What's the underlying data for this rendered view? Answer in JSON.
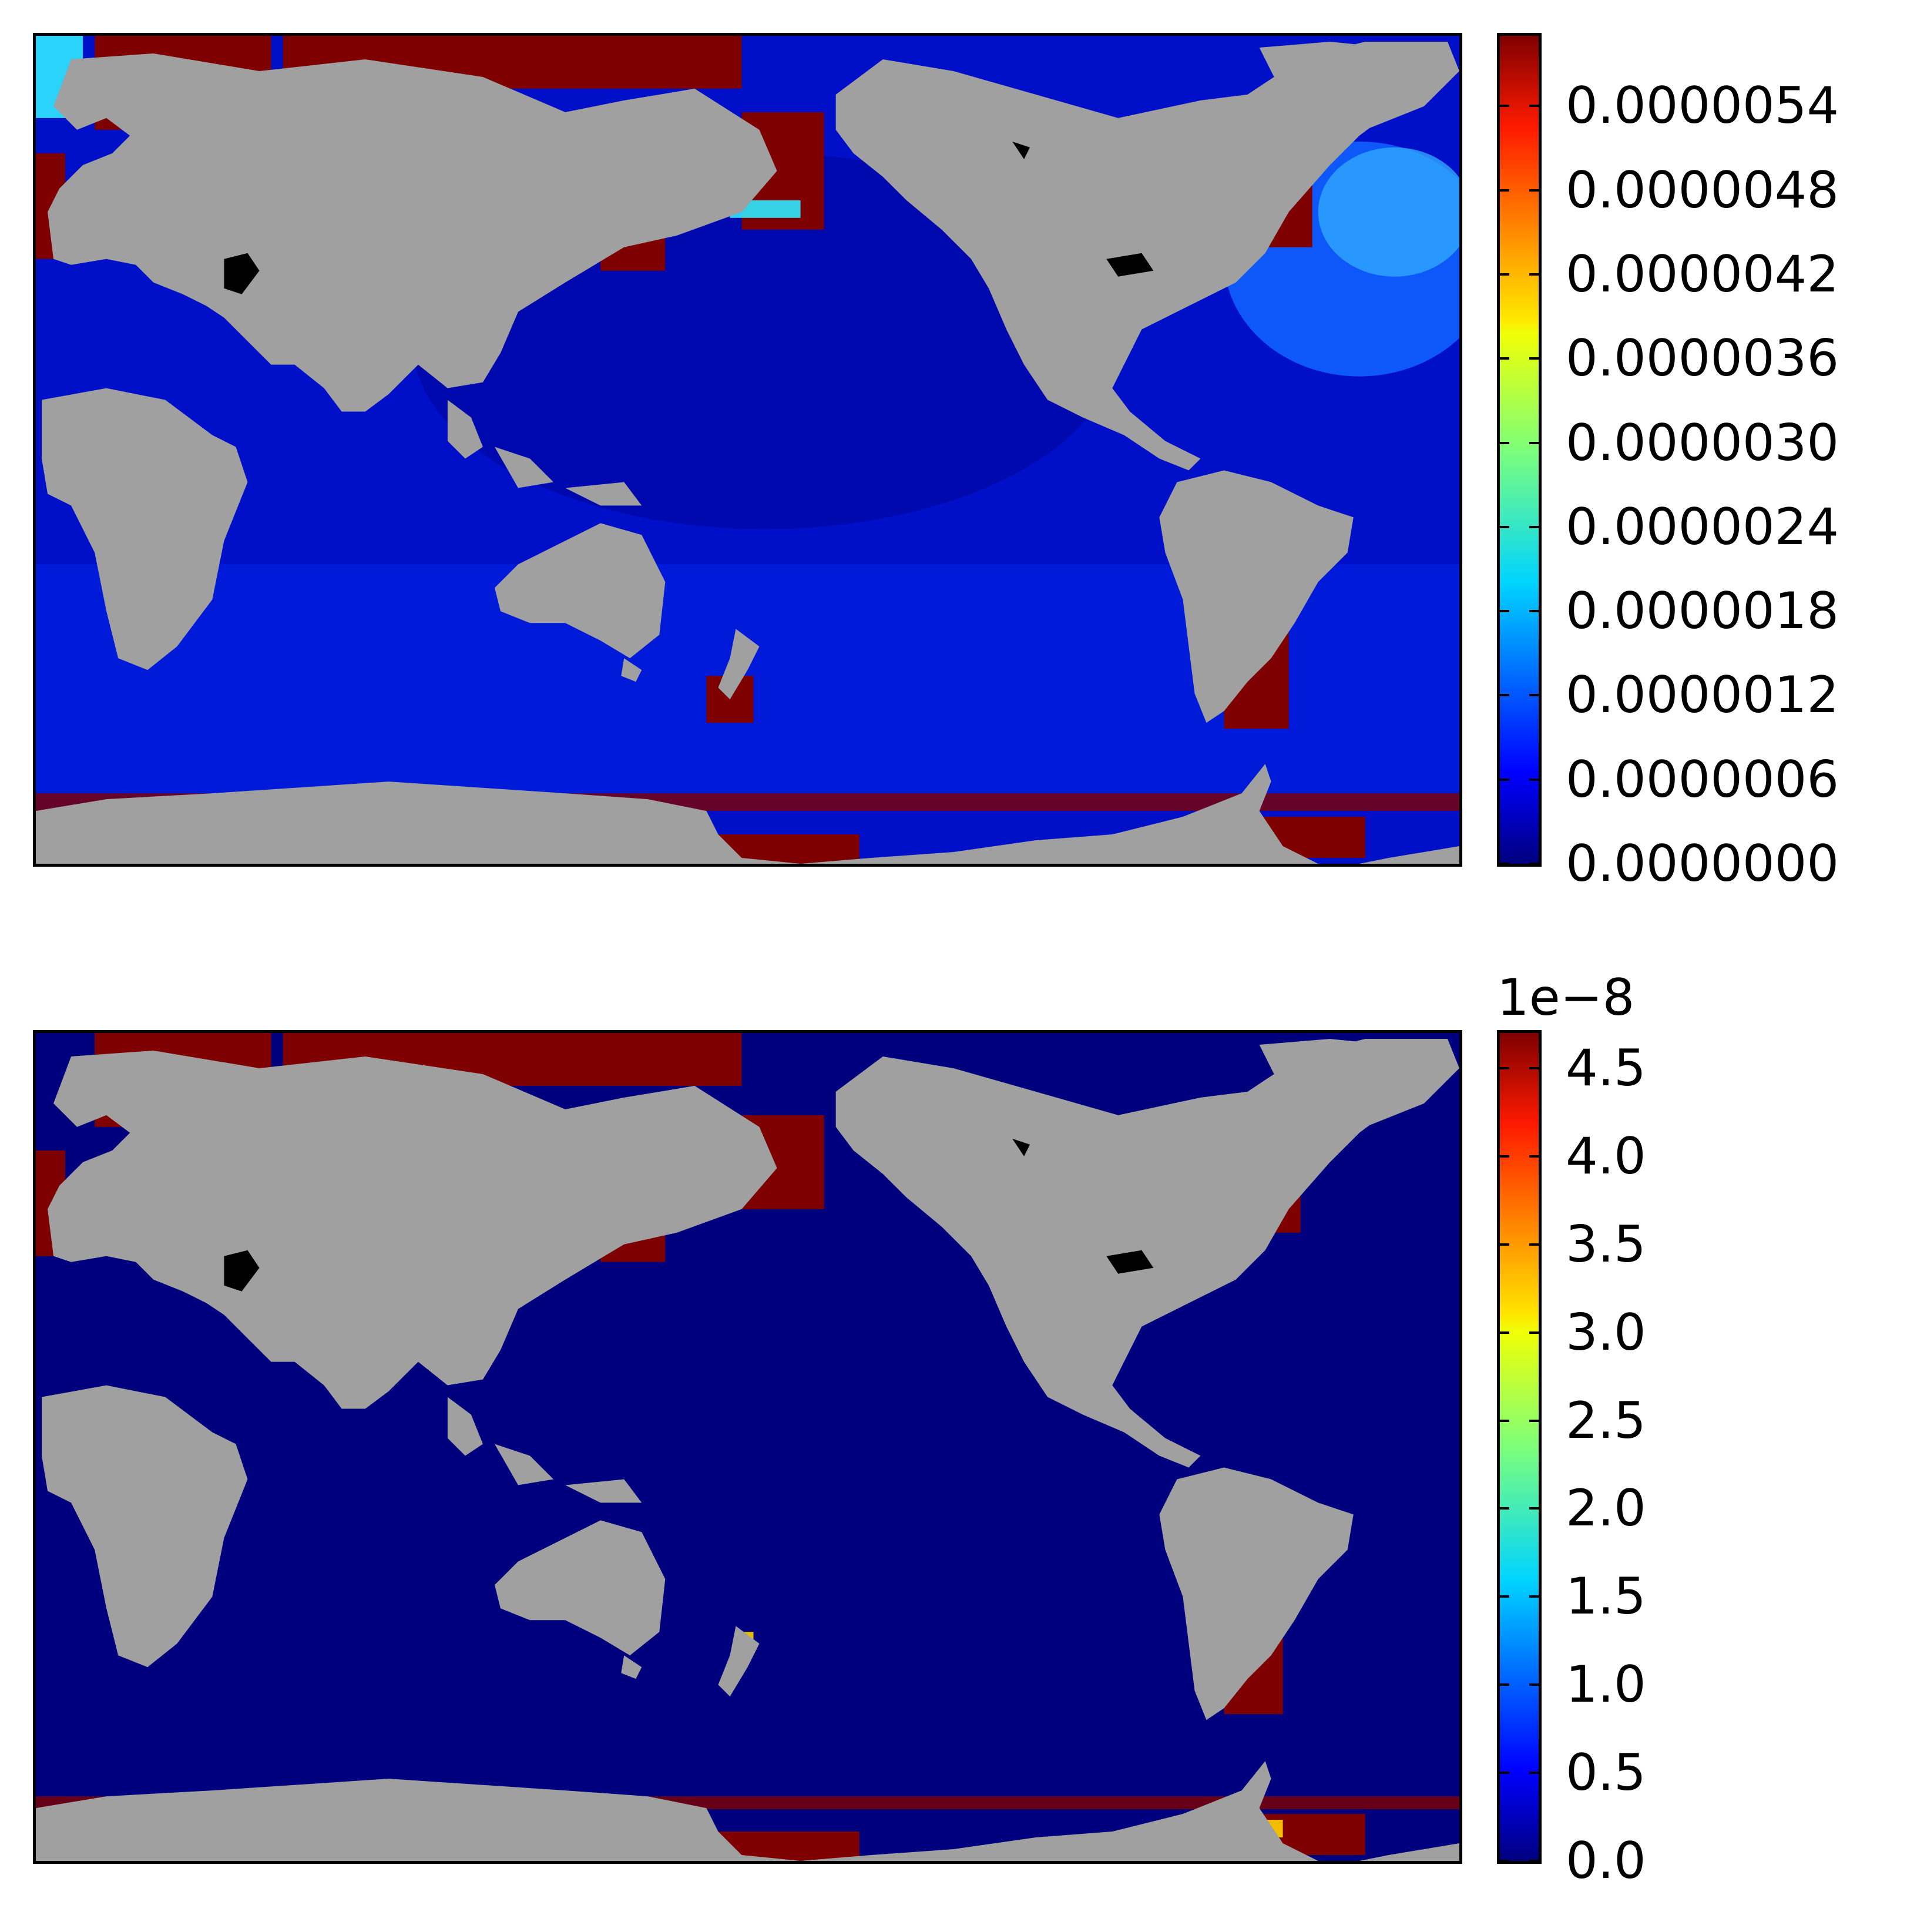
{
  "colors": {
    "land": "#a0a0a0",
    "lake": "#000000",
    "ocean_low": "#00008f",
    "ocean_mid": "#0020ff",
    "coast_high": "#7f0000"
  },
  "colormap": "jet",
  "panels": [
    {
      "colorbar": {
        "ticks": [
          "0.0000054",
          "0.0000048",
          "0.0000042",
          "0.0000036",
          "0.0000030",
          "0.0000024",
          "0.0000018",
          "0.0000012",
          "0.0000006",
          "0.0000000"
        ],
        "tick_values": [
          5.4e-06,
          4.8e-06,
          4.2e-06,
          3.6e-06,
          3e-06,
          2.4e-06,
          1.8e-06,
          1.2e-06,
          6e-07,
          0.0
        ],
        "vmin": 0.0,
        "vmax": 5.9e-06,
        "offset": ""
      }
    },
    {
      "colorbar": {
        "ticks": [
          "4.5",
          "4.0",
          "3.5",
          "3.0",
          "2.5",
          "2.0",
          "1.5",
          "1.0",
          "0.5",
          "0.0"
        ],
        "tick_values": [
          4.5,
          4.0,
          3.5,
          3.0,
          2.5,
          2.0,
          1.5,
          1.0,
          0.5,
          0.0
        ],
        "vmin": 0.0,
        "vmax": 4.7,
        "offset": "1e−8"
      }
    }
  ]
}
